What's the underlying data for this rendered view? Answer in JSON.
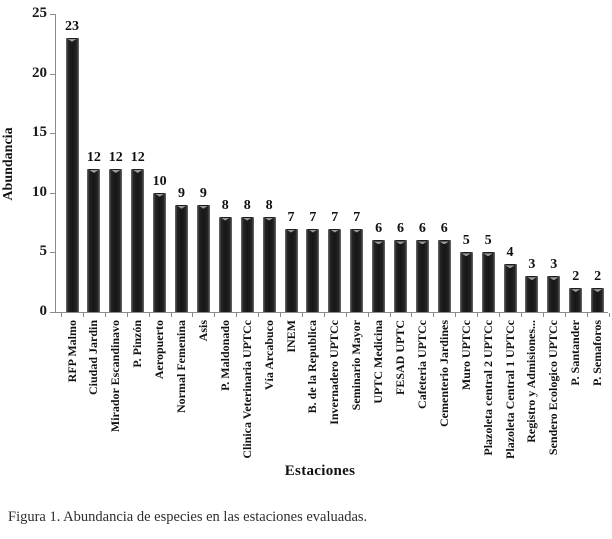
{
  "figure": {
    "caption": "Figura 1. Abundancia de especies en las estaciones evaluadas."
  },
  "chart_data": {
    "type": "bar",
    "title": "",
    "xlabel": "Estaciones",
    "ylabel": "Abundancia",
    "ylim": [
      0,
      25
    ],
    "yticks": [
      0,
      5,
      10,
      15,
      20,
      25
    ],
    "grid": false,
    "legend": "none",
    "bar_color": "#1d1d1d",
    "axis_color": "#8c8c8c",
    "data_labels": true,
    "categories": [
      "RFP Malmo",
      "Ciudad Jardin",
      "Mirador Escandinavo",
      "P. Pinzón",
      "Aeropuerto",
      "Normal Femenina",
      "Asis",
      "P. Maldonado",
      "Clinica Veterinaria UPTCc",
      "Vía Arcabuco",
      "INEM",
      "B. de la Republica",
      "Invernadero UPTCc",
      "Seminario Mayor",
      "UPTC Medicina",
      "FESAD UPTC",
      "Cafeteria UPTCc",
      "Cementerio Jardines",
      "Muro UPTCc",
      "Plazoleta central 2 UPTCc",
      "Plazoleta Central 1 UPTCc",
      "Registro y Admisiones...",
      "Sendero Ecologico UPTCc",
      "P. Santander",
      "P. Semaforos"
    ],
    "values": [
      23,
      12,
      12,
      12,
      10,
      9,
      9,
      8,
      8,
      8,
      7,
      7,
      7,
      7,
      6,
      6,
      6,
      6,
      5,
      5,
      4,
      3,
      3,
      2,
      2
    ]
  }
}
